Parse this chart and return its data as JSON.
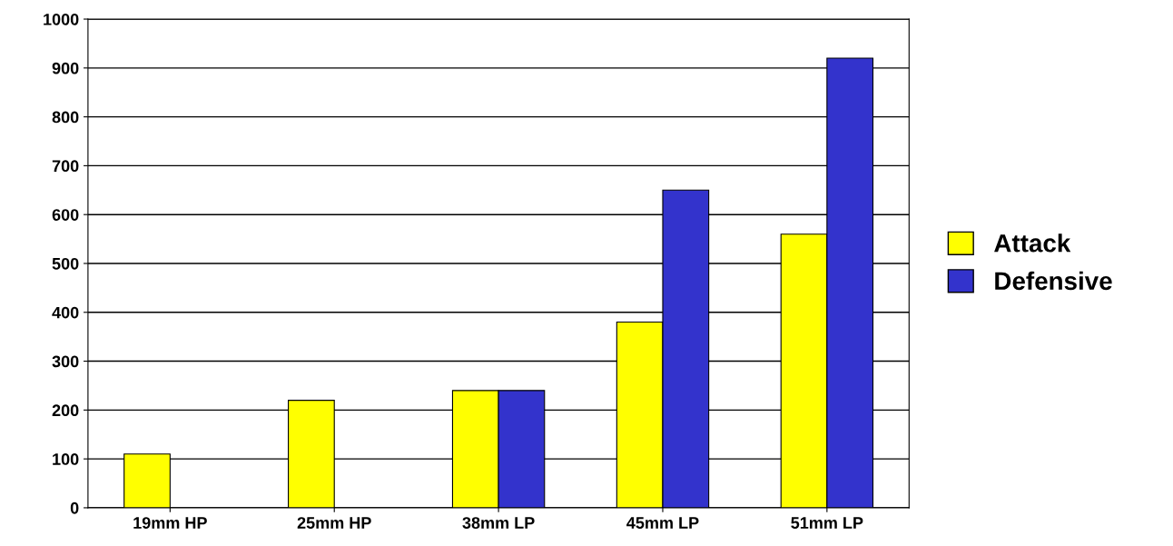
{
  "chart_data": {
    "type": "bar",
    "categories": [
      "19mm HP",
      "25mm HP",
      "38mm LP",
      "45mm LP",
      "51mm LP"
    ],
    "series": [
      {
        "name": "Attack",
        "color": "#ffff00",
        "values": [
          110,
          220,
          240,
          380,
          560
        ]
      },
      {
        "name": "Defensive",
        "color": "#3333cc",
        "values": [
          null,
          null,
          240,
          650,
          920
        ]
      }
    ],
    "ylim": [
      0,
      1000
    ],
    "yticks": [
      0,
      100,
      200,
      300,
      400,
      500,
      600,
      700,
      800,
      900,
      1000
    ],
    "grid": "y",
    "legend": "right"
  }
}
